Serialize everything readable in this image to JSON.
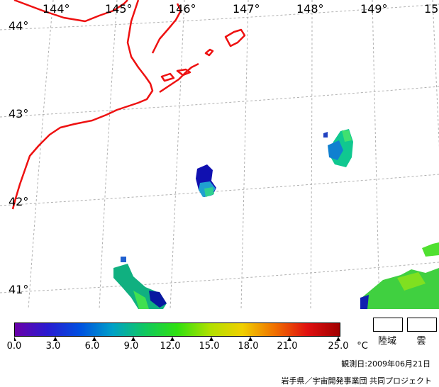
{
  "map": {
    "lon_labels": [
      "144°",
      "145°",
      "146°",
      "147°",
      "148°",
      "149°",
      "15"
    ],
    "lat_labels": [
      "44°",
      "43°",
      "42°",
      "41°"
    ],
    "coast_color": "#ee1111",
    "grid_color": "#b0b0b0"
  },
  "colorbar": {
    "ticks": [
      "0.0",
      "3.0",
      "6.0",
      "9.0",
      "12.0",
      "15.0",
      "18.0",
      "21.0",
      "25.0"
    ],
    "unit": "°C",
    "colors": [
      "#6a00a8",
      "#2a1bd0",
      "#0050e0",
      "#00a0c8",
      "#10c860",
      "#30e010",
      "#b0e000",
      "#f0d000",
      "#f07000",
      "#e01010",
      "#a00000"
    ]
  },
  "legend": {
    "land_label": "陸域",
    "cloud_label": "雲"
  },
  "footer": {
    "observation_date": "観測日:2009年06月21日",
    "credit": "岩手県／宇宙開発事業団 共同プロジェクト"
  }
}
